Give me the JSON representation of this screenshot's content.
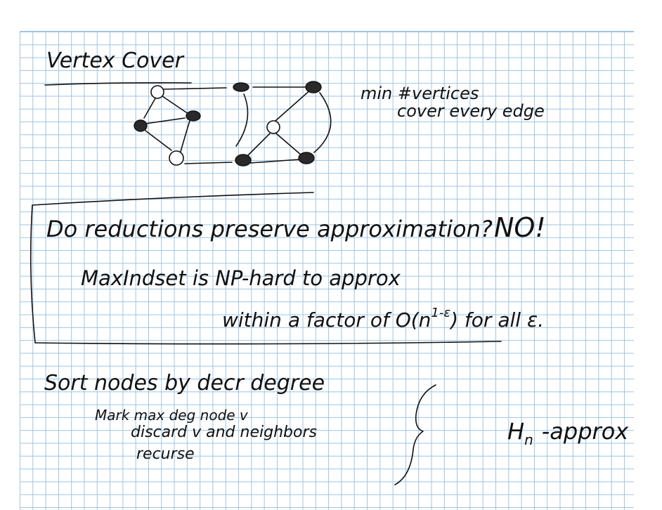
{
  "title": "Vertex Cover",
  "side_note": {
    "line1": "min #vertices",
    "line2": "cover every edge"
  },
  "box": {
    "question": "Do reductions preserve approximation?",
    "answer": "NO!",
    "line2": "MaxIndset is NP-hard to approx",
    "line3_prefix": "within a factor of O(n",
    "line3_exp": "1-ε",
    "line3_suffix": ") for all ε."
  },
  "greedy": {
    "line1": "Sort nodes by decr degree",
    "step1": "Mark max deg node v",
    "step2": "discard v and neighbors",
    "step3": "recurse",
    "result_h": "H",
    "result_sub": "n",
    "result_rest": "-approx"
  },
  "graph": {
    "vertices": [
      {
        "id": "a",
        "covered": false
      },
      {
        "id": "b",
        "covered": true
      },
      {
        "id": "c",
        "covered": true
      },
      {
        "id": "d",
        "covered": true
      },
      {
        "id": "e",
        "covered": true
      },
      {
        "id": "f",
        "covered": false
      },
      {
        "id": "g",
        "covered": false
      },
      {
        "id": "h",
        "covered": true
      },
      {
        "id": "i",
        "covered": true
      }
    ]
  },
  "colors": {
    "ink": "#111111",
    "grid": "#9ec4e3"
  }
}
